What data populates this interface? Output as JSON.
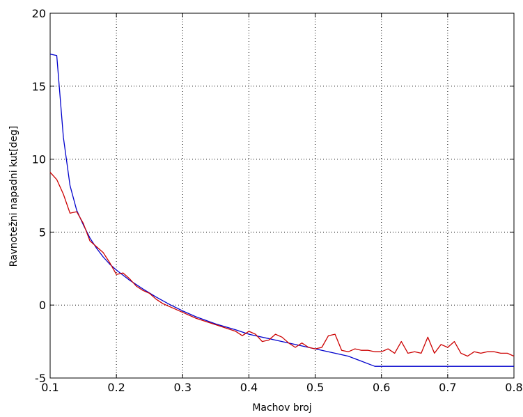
{
  "chart_data": {
    "type": "line",
    "title": "",
    "xlabel": "Machov broj",
    "ylabel": "Ravnotežni napadni kut[deg]",
    "xlim": [
      0.1,
      0.8
    ],
    "ylim": [
      -5,
      20
    ],
    "xticks": [
      "0.1",
      "0.2",
      "0.3",
      "0.4",
      "0.5",
      "0.6",
      "0.7",
      "0.8"
    ],
    "yticks": [
      "-5",
      "0",
      "5",
      "10",
      "15",
      "20"
    ],
    "grid": true,
    "legend": "none",
    "series": [
      {
        "color": "#0000cc",
        "x": [
          0.1,
          0.11,
          0.12,
          0.13,
          0.14,
          0.15,
          0.16,
          0.17,
          0.18,
          0.19,
          0.2,
          0.22,
          0.24,
          0.26,
          0.28,
          0.3,
          0.32,
          0.35,
          0.38,
          0.4,
          0.45,
          0.5,
          0.55,
          0.59,
          0.6,
          0.65,
          0.7,
          0.75,
          0.8
        ],
        "y": [
          17.2,
          17.1,
          11.5,
          8.2,
          6.5,
          5.5,
          4.6,
          3.9,
          3.3,
          2.8,
          2.4,
          1.7,
          1.1,
          0.55,
          0.05,
          -0.4,
          -0.8,
          -1.3,
          -1.7,
          -2.0,
          -2.5,
          -3.0,
          -3.5,
          -4.2,
          -4.2,
          -4.2,
          -4.2,
          -4.2,
          -4.2
        ]
      },
      {
        "color": "#cc0000",
        "x": [
          0.1,
          0.11,
          0.12,
          0.13,
          0.14,
          0.15,
          0.16,
          0.17,
          0.18,
          0.19,
          0.2,
          0.21,
          0.22,
          0.23,
          0.24,
          0.25,
          0.26,
          0.27,
          0.28,
          0.3,
          0.32,
          0.34,
          0.36,
          0.38,
          0.39,
          0.4,
          0.41,
          0.42,
          0.43,
          0.44,
          0.45,
          0.46,
          0.47,
          0.48,
          0.49,
          0.5,
          0.51,
          0.52,
          0.53,
          0.54,
          0.55,
          0.56,
          0.57,
          0.58,
          0.59,
          0.6,
          0.61,
          0.62,
          0.63,
          0.64,
          0.65,
          0.66,
          0.67,
          0.68,
          0.69,
          0.7,
          0.71,
          0.72,
          0.73,
          0.74,
          0.75,
          0.76,
          0.77,
          0.78,
          0.79,
          0.8
        ],
        "y": [
          9.1,
          8.6,
          7.6,
          6.3,
          6.4,
          5.6,
          4.4,
          4.0,
          3.6,
          2.9,
          2.1,
          2.2,
          1.8,
          1.3,
          1.0,
          0.8,
          0.4,
          0.1,
          -0.1,
          -0.5,
          -0.9,
          -1.2,
          -1.5,
          -1.8,
          -2.1,
          -1.8,
          -2.0,
          -2.5,
          -2.4,
          -2.0,
          -2.2,
          -2.6,
          -2.9,
          -2.6,
          -2.9,
          -3.0,
          -2.9,
          -2.1,
          -2.0,
          -3.1,
          -3.2,
          -3.0,
          -3.1,
          -3.1,
          -3.2,
          -3.2,
          -3.0,
          -3.3,
          -2.5,
          -3.3,
          -3.2,
          -3.3,
          -2.2,
          -3.3,
          -2.7,
          -2.9,
          -2.5,
          -3.3,
          -3.5,
          -3.2,
          -3.3,
          -3.2,
          -3.2,
          -3.3,
          -3.3,
          -3.5
        ]
      }
    ]
  }
}
